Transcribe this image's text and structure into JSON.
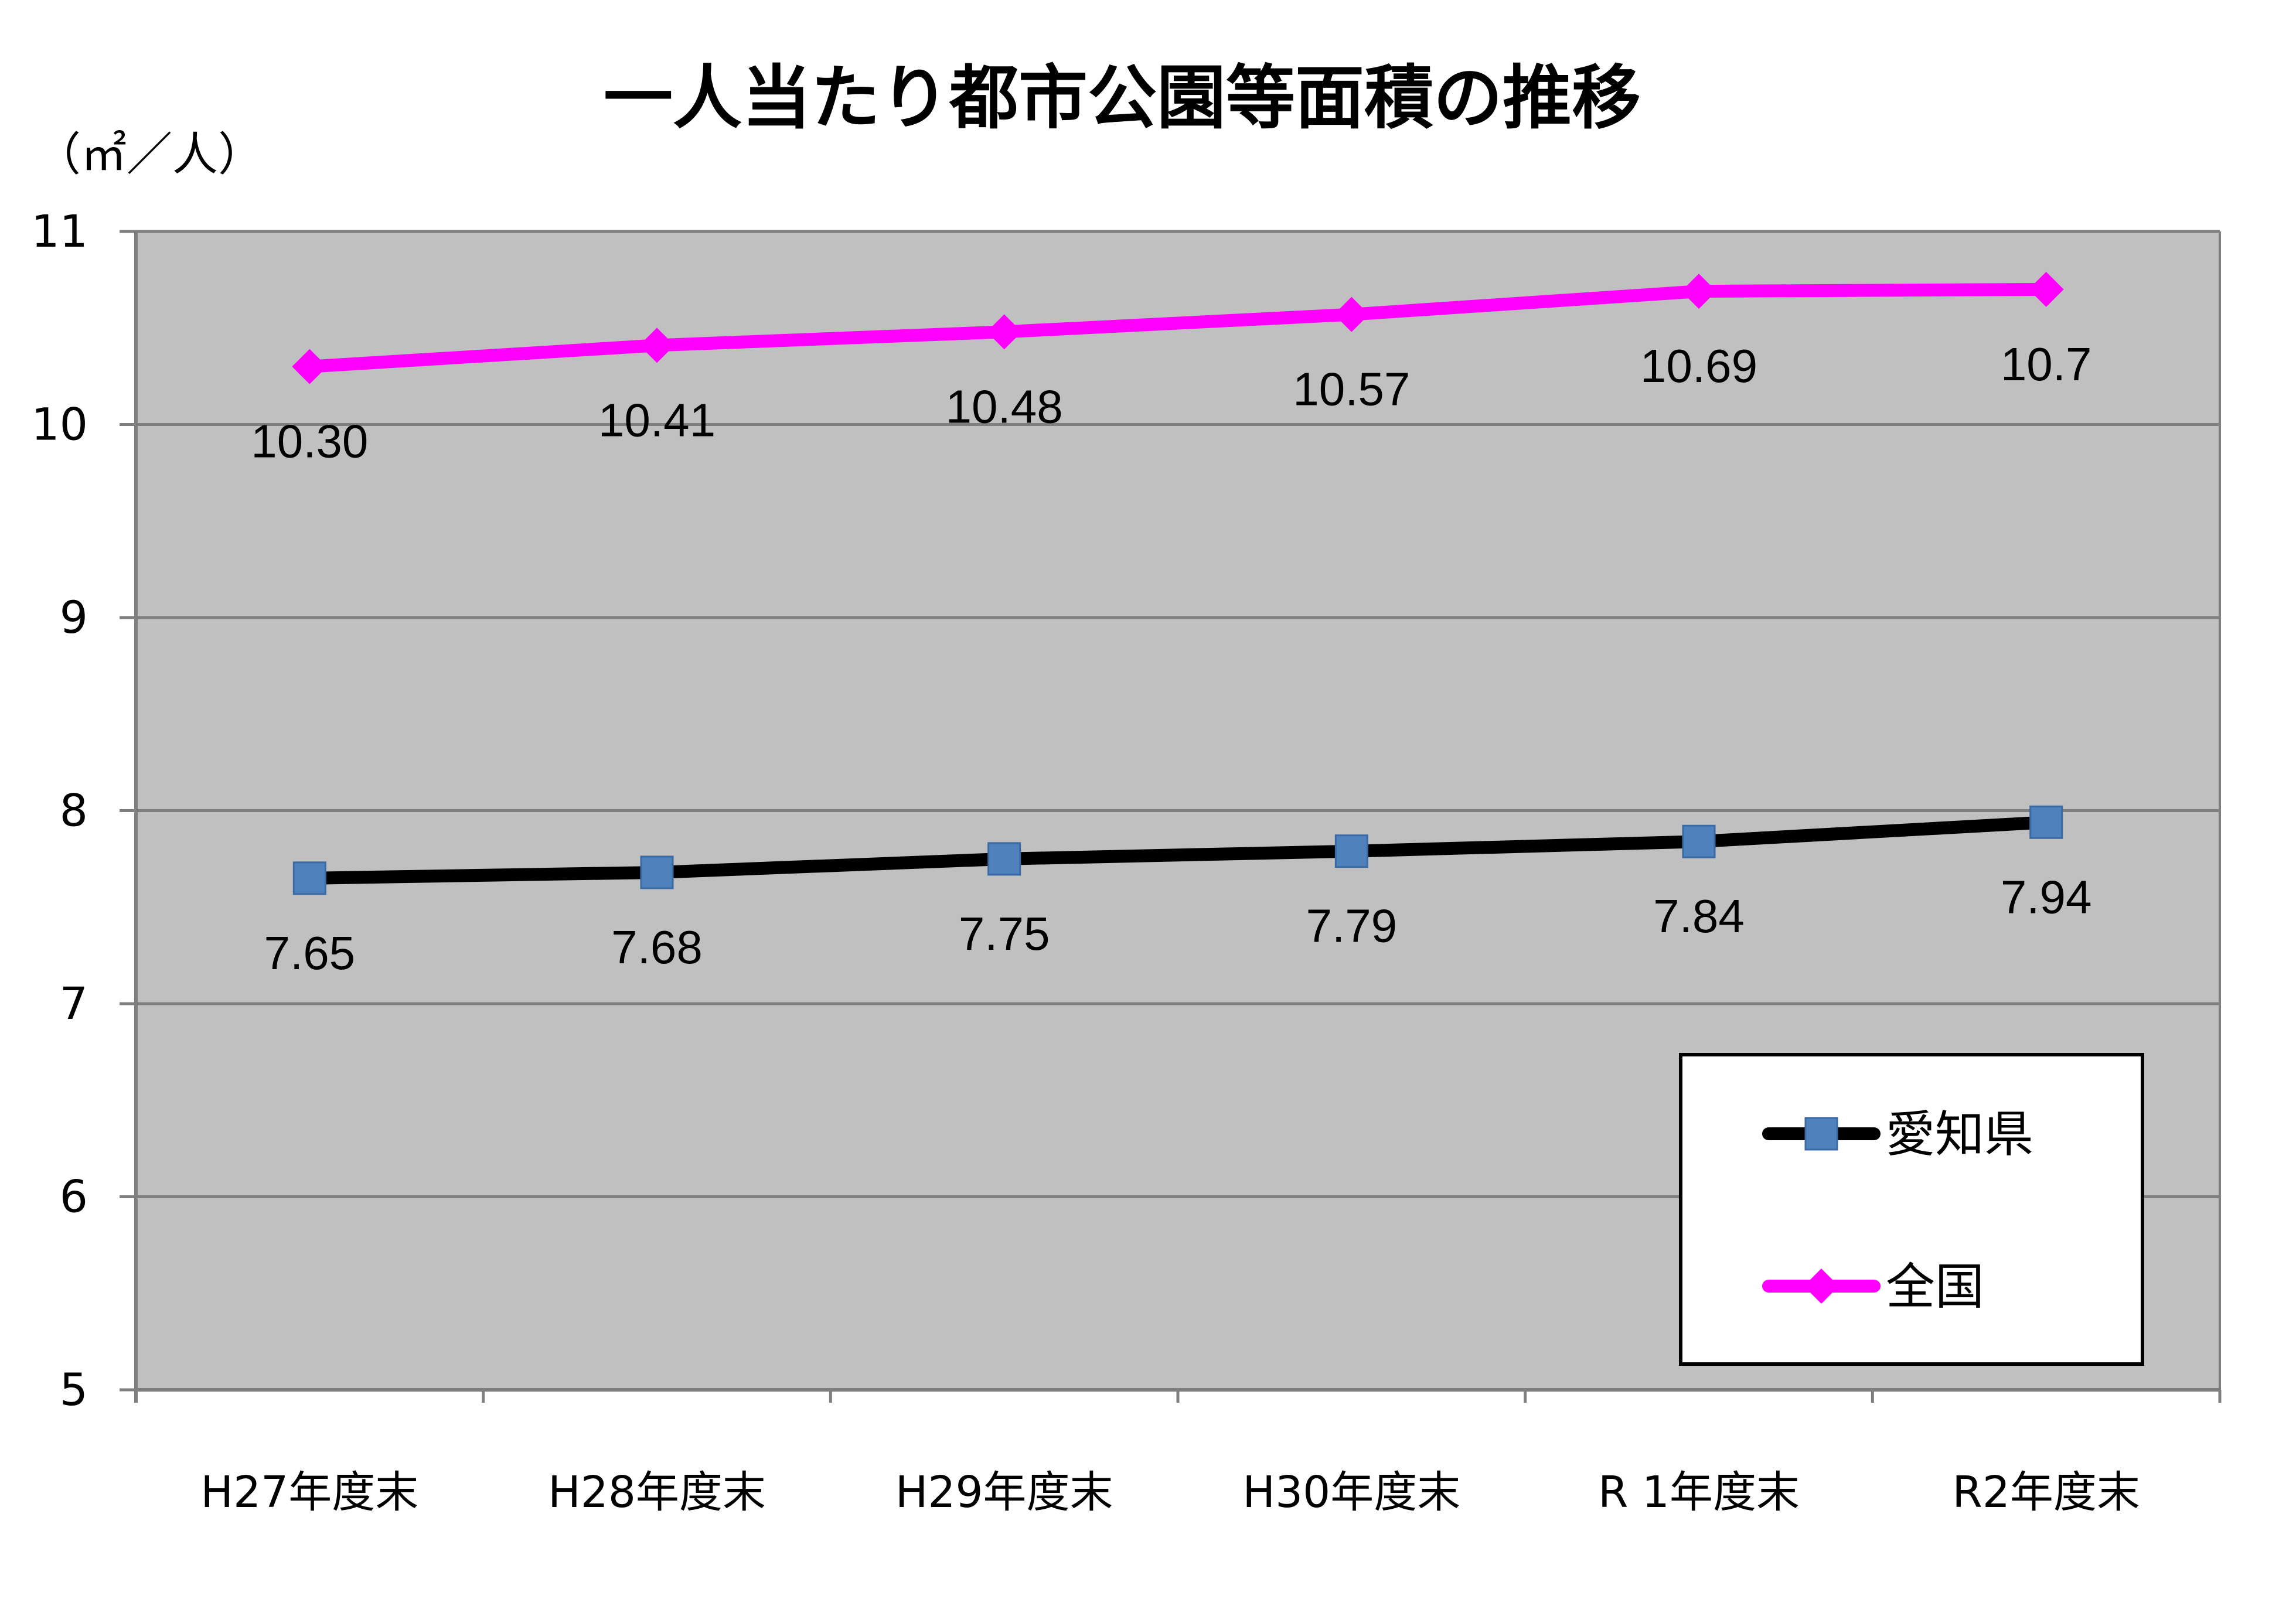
{
  "chart_data": {
    "type": "line",
    "title": "一人当たり都市公園等面積の推移",
    "ylabel": "（㎡／人）",
    "xlabel": "",
    "ylim": [
      5,
      11
    ],
    "yticks": [
      "5",
      "6",
      "7",
      "8",
      "9",
      "10",
      "11"
    ],
    "categories": [
      "H27年度末",
      "H28年度末",
      "H29年度末",
      "H30年度末",
      "R 1年度末",
      "R2年度末"
    ],
    "grid": true,
    "legend_position": "bottom-right",
    "series": [
      {
        "name": "愛知県",
        "values": [
          7.65,
          7.68,
          7.75,
          7.79,
          7.84,
          7.94
        ],
        "labels": [
          "7.65",
          "7.68",
          "7.75",
          "7.79",
          "7.84",
          "7.94"
        ],
        "color": "#000000",
        "marker_color": "#4f81bd",
        "marker": "square"
      },
      {
        "name": "全国",
        "values": [
          10.3,
          10.41,
          10.48,
          10.57,
          10.69,
          10.7
        ],
        "labels": [
          "10.30",
          "10.41",
          "10.48",
          "10.57",
          "10.69",
          "10.7"
        ],
        "color": "#ff00ff",
        "marker_color": "#ff00ff",
        "marker": "diamond"
      }
    ],
    "plot_background": "#c0c0c0"
  }
}
